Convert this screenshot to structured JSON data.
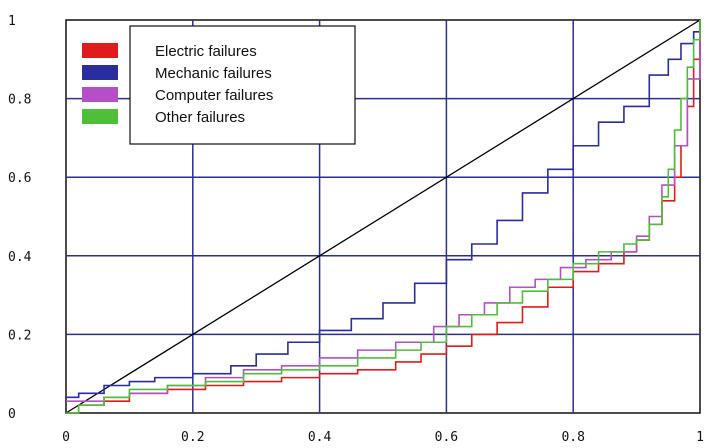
{
  "chart_data": {
    "type": "line",
    "title": "",
    "xlabel": "",
    "ylabel": "",
    "xlim": [
      0,
      1
    ],
    "ylim": [
      0,
      1
    ],
    "grid": true,
    "grid_color": "#2b2f8f",
    "legend_position": "top-left",
    "x_ticks": [
      {
        "value": 0,
        "label": "0"
      },
      {
        "value": 0.2,
        "label": "0.2"
      },
      {
        "value": 0.4,
        "label": "0.4"
      },
      {
        "value": 0.6,
        "label": "0.6"
      },
      {
        "value": 0.8,
        "label": "0.8"
      },
      {
        "value": 1,
        "label": "1"
      }
    ],
    "y_ticks": [
      {
        "value": 0,
        "label": "0"
      },
      {
        "value": 0.2,
        "label": "0.2"
      },
      {
        "value": 0.4,
        "label": "0.4"
      },
      {
        "value": 0.6,
        "label": "0.6"
      },
      {
        "value": 0.8,
        "label": "0.8"
      },
      {
        "value": 1,
        "label": "1"
      }
    ],
    "reference_line": {
      "x": [
        0,
        1
      ],
      "y": [
        0,
        1
      ],
      "color": "#000000"
    },
    "series": [
      {
        "name": "Electric failures",
        "color": "#e01b1b",
        "x": [
          0,
          0.02,
          0.06,
          0.1,
          0.16,
          0.22,
          0.28,
          0.34,
          0.4,
          0.46,
          0.52,
          0.56,
          0.6,
          0.64,
          0.68,
          0.72,
          0.76,
          0.8,
          0.84,
          0.88,
          0.9,
          0.92,
          0.94,
          0.96,
          0.97,
          0.98,
          0.99,
          1
        ],
        "y": [
          0,
          0.02,
          0.03,
          0.05,
          0.06,
          0.07,
          0.08,
          0.09,
          0.1,
          0.11,
          0.13,
          0.15,
          0.17,
          0.2,
          0.23,
          0.27,
          0.32,
          0.36,
          0.38,
          0.41,
          0.44,
          0.48,
          0.54,
          0.6,
          0.68,
          0.78,
          0.9,
          0.99
        ]
      },
      {
        "name": "Mechanic failures",
        "color": "#2a2e9c",
        "x": [
          0,
          0.02,
          0.06,
          0.1,
          0.14,
          0.2,
          0.26,
          0.3,
          0.35,
          0.4,
          0.45,
          0.5,
          0.55,
          0.6,
          0.64,
          0.68,
          0.72,
          0.76,
          0.8,
          0.84,
          0.88,
          0.92,
          0.95,
          0.97,
          0.99,
          1
        ],
        "y": [
          0.04,
          0.05,
          0.07,
          0.08,
          0.09,
          0.1,
          0.12,
          0.15,
          0.18,
          0.21,
          0.24,
          0.28,
          0.33,
          0.39,
          0.43,
          0.49,
          0.56,
          0.62,
          0.68,
          0.74,
          0.78,
          0.86,
          0.9,
          0.94,
          0.97,
          1
        ]
      },
      {
        "name": "Computer failures",
        "color": "#b44fc8",
        "x": [
          0,
          0.02,
          0.06,
          0.1,
          0.16,
          0.22,
          0.28,
          0.34,
          0.4,
          0.46,
          0.52,
          0.58,
          0.62,
          0.66,
          0.7,
          0.74,
          0.78,
          0.82,
          0.86,
          0.9,
          0.92,
          0.94,
          0.96,
          0.98,
          1
        ],
        "y": [
          0.03,
          0.03,
          0.04,
          0.05,
          0.07,
          0.09,
          0.11,
          0.12,
          0.14,
          0.16,
          0.18,
          0.22,
          0.25,
          0.28,
          0.32,
          0.34,
          0.37,
          0.39,
          0.41,
          0.45,
          0.5,
          0.58,
          0.68,
          0.85,
          1
        ]
      },
      {
        "name": "Other failures",
        "color": "#4fbf3a",
        "x": [
          0,
          0.02,
          0.06,
          0.1,
          0.16,
          0.22,
          0.28,
          0.34,
          0.4,
          0.46,
          0.52,
          0.56,
          0.6,
          0.64,
          0.68,
          0.72,
          0.76,
          0.8,
          0.84,
          0.88,
          0.9,
          0.92,
          0.94,
          0.95,
          0.96,
          0.97,
          0.98,
          0.99,
          1
        ],
        "y": [
          0,
          0.02,
          0.04,
          0.06,
          0.07,
          0.08,
          0.1,
          0.11,
          0.12,
          0.14,
          0.16,
          0.18,
          0.22,
          0.25,
          0.28,
          0.31,
          0.34,
          0.38,
          0.41,
          0.43,
          0.44,
          0.48,
          0.55,
          0.62,
          0.72,
          0.8,
          0.88,
          0.95,
          1
        ]
      }
    ]
  }
}
